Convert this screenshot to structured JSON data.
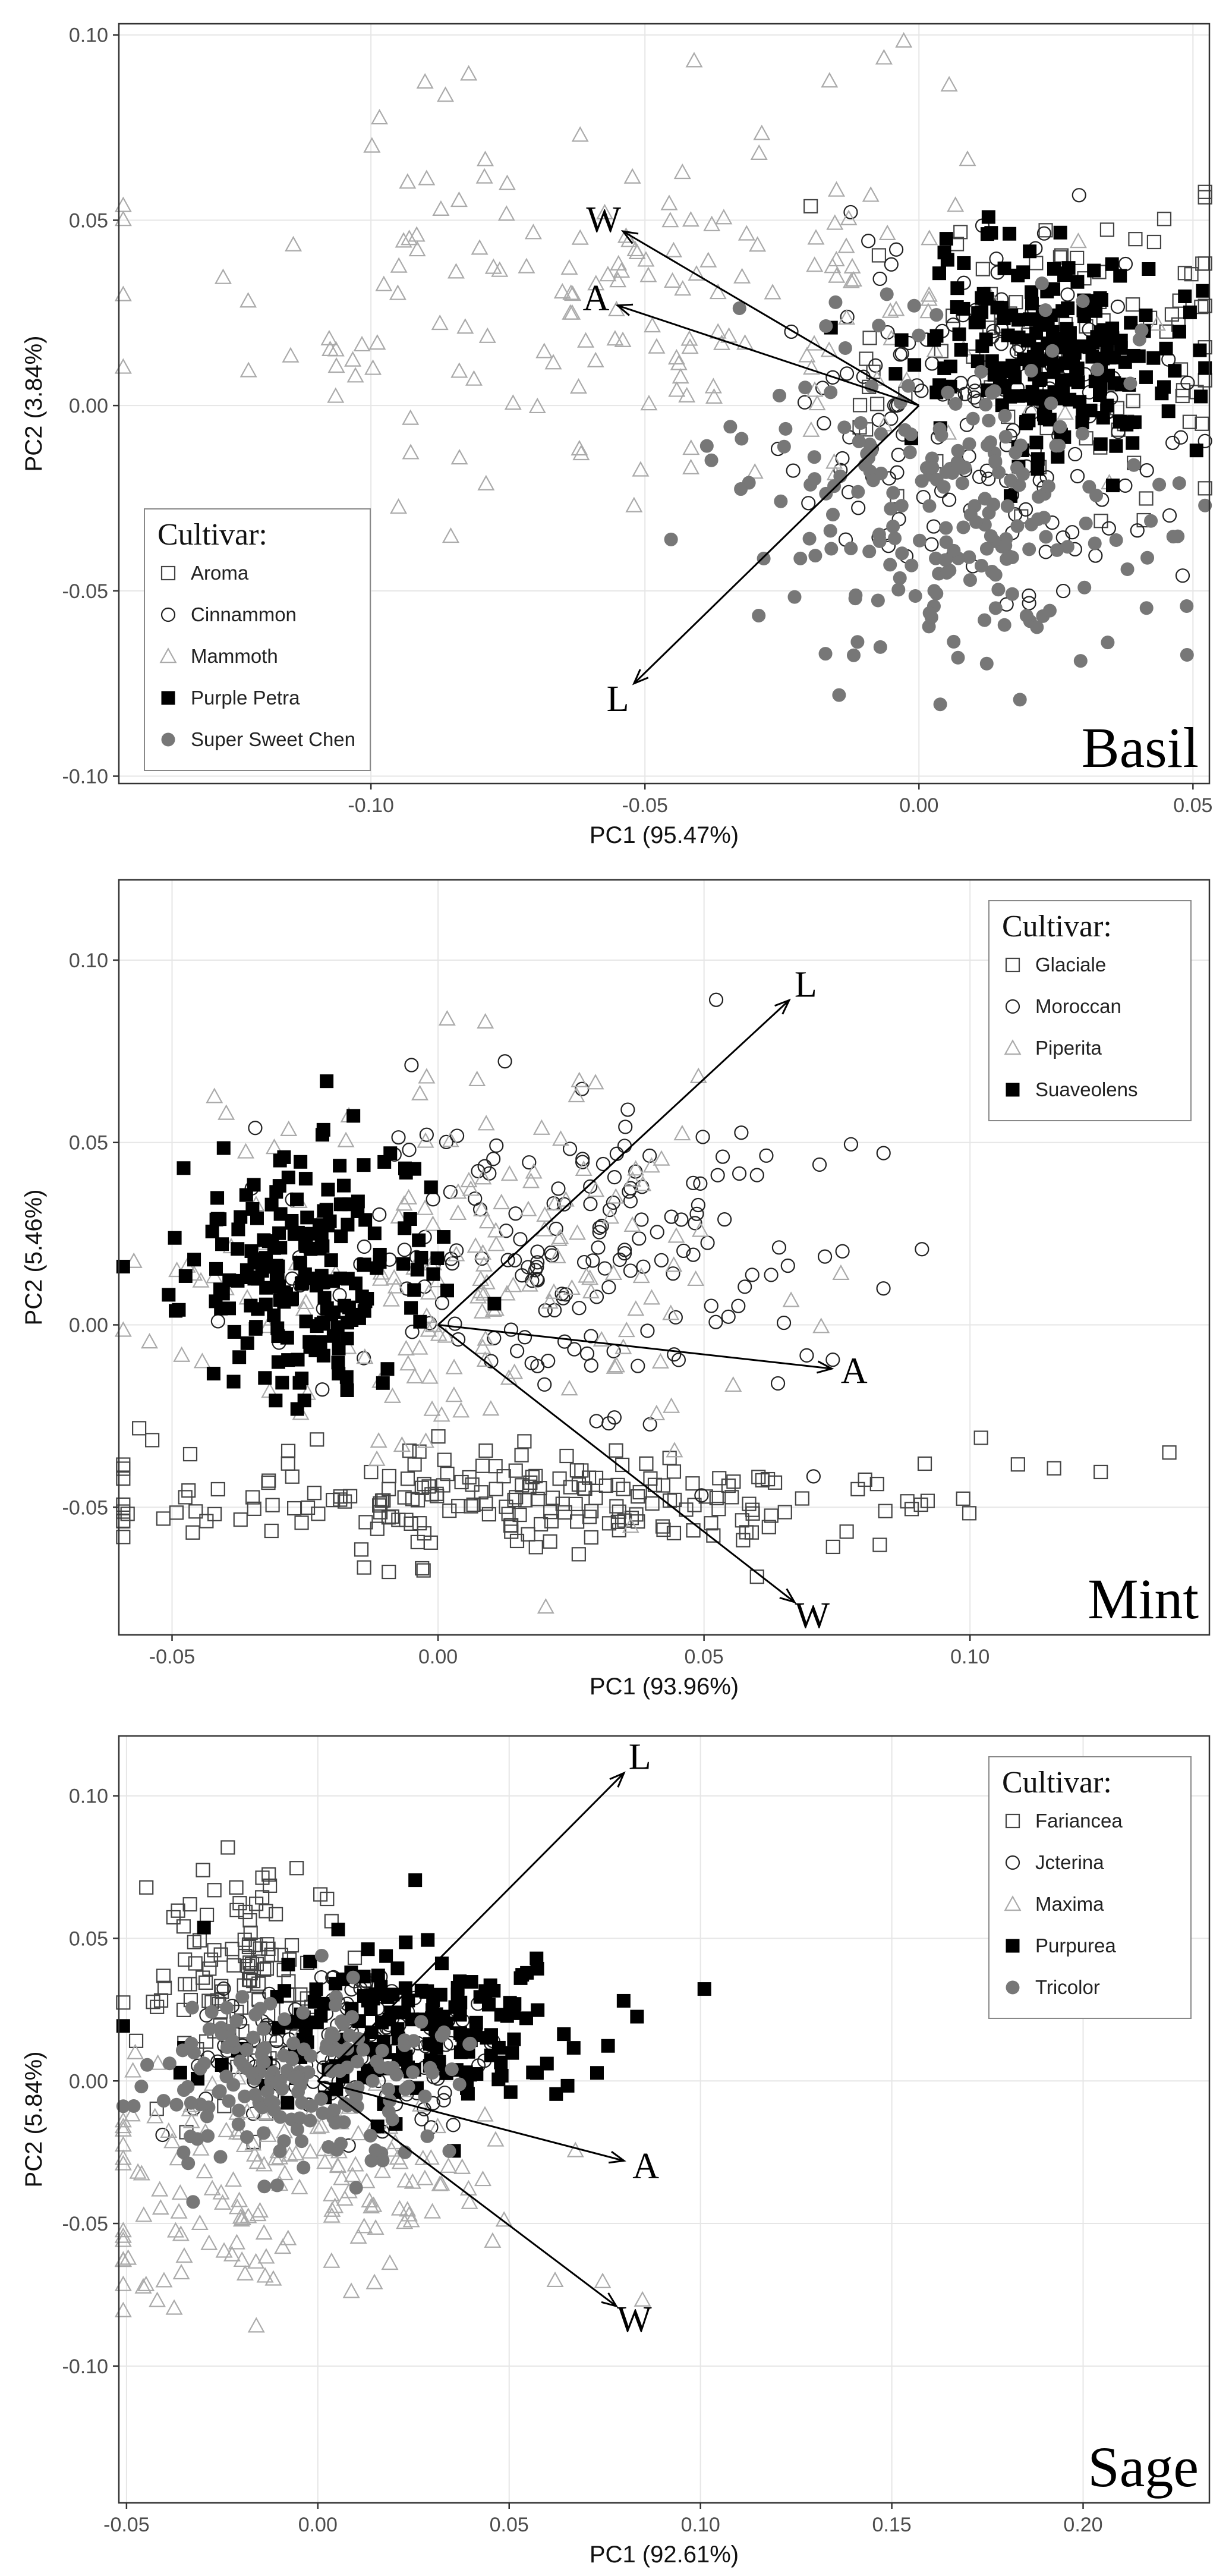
{
  "figure": {
    "description_label": "Three PCA biplots of herb cultivars"
  },
  "chart_data": [
    {
      "type": "scatter",
      "panel_label": "Basil",
      "title": "",
      "xlabel": "PC1 (95.47%)",
      "ylabel": "PC2 (3.84%)",
      "xlim": [
        -0.146,
        0.053
      ],
      "ylim": [
        -0.102,
        0.103
      ],
      "xticks": [
        -0.1,
        -0.05,
        0.0,
        0.05
      ],
      "xtick_labels": [
        "-0.10",
        "-0.05",
        "0.00",
        "0.05"
      ],
      "yticks": [
        -0.1,
        -0.05,
        0.0,
        0.05,
        0.1
      ],
      "ytick_labels": [
        "-0.10",
        "-0.05",
        "0.00",
        "0.05",
        "0.10"
      ],
      "legend": {
        "title": "Cultivar:",
        "position": "bottom-left"
      },
      "series": [
        {
          "name": "Aroma",
          "marker": "open-square",
          "color": "#444444",
          "count": 90,
          "center": [
            0.025,
            0.015
          ],
          "spread": [
            0.02,
            0.02
          ]
        },
        {
          "name": "Cinnammon",
          "marker": "open-circle",
          "color": "#222222",
          "count": 150,
          "center": [
            0.012,
            -0.005
          ],
          "spread": [
            0.018,
            0.022
          ]
        },
        {
          "name": "Mammoth",
          "marker": "open-triangle",
          "color": "#aaaaaa",
          "count": 180,
          "center": [
            -0.05,
            0.03
          ],
          "spread": [
            0.04,
            0.025
          ]
        },
        {
          "name": "Purple Petra",
          "marker": "filled-square",
          "color": "#000000",
          "count": 220,
          "center": [
            0.025,
            0.015
          ],
          "spread": [
            0.012,
            0.014
          ]
        },
        {
          "name": "Super Sweet Chen",
          "marker": "filled-circle",
          "color": "#777777",
          "count": 220,
          "center": [
            0.005,
            -0.025
          ],
          "spread": [
            0.02,
            0.022
          ]
        }
      ],
      "vectors": [
        {
          "label": "W",
          "origin": [
            0.0,
            0.0
          ],
          "end": [
            -0.054,
            0.047
          ]
        },
        {
          "label": "A",
          "origin": [
            0.0,
            0.0
          ],
          "end": [
            -0.055,
            0.027
          ]
        },
        {
          "label": "L",
          "origin": [
            0.0,
            0.0
          ],
          "end": [
            -0.052,
            -0.075
          ]
        }
      ]
    },
    {
      "type": "scatter",
      "panel_label": "Mint",
      "title": "",
      "xlabel": "PC1 (93.96%)",
      "ylabel": "PC2 (5.46%)",
      "xlim": [
        -0.06,
        0.145
      ],
      "ylim": [
        -0.085,
        0.122
      ],
      "xticks": [
        -0.05,
        0.0,
        0.05,
        0.1
      ],
      "xtick_labels": [
        "-0.05",
        "0.00",
        "0.05",
        "0.10"
      ],
      "yticks": [
        -0.05,
        0.0,
        0.05,
        0.1
      ],
      "ytick_labels": [
        "-0.05",
        "0.00",
        "0.05",
        "0.10"
      ],
      "legend": {
        "title": "Cultivar:",
        "position": "top-right"
      },
      "series": [
        {
          "name": "Glaciale",
          "marker": "open-square",
          "color": "#444444",
          "count": 220,
          "center": [
            0.02,
            -0.048
          ],
          "spread": [
            0.04,
            0.008
          ]
        },
        {
          "name": "Moroccan",
          "marker": "open-circle",
          "color": "#222222",
          "count": 180,
          "center": [
            0.025,
            0.02
          ],
          "spread": [
            0.025,
            0.022
          ]
        },
        {
          "name": "Piperita",
          "marker": "open-triangle",
          "color": "#aaaaaa",
          "count": 170,
          "center": [
            0.01,
            0.015
          ],
          "spread": [
            0.03,
            0.03
          ]
        },
        {
          "name": "Suaveolens",
          "marker": "filled-square",
          "color": "#000000",
          "count": 200,
          "center": [
            -0.025,
            0.015
          ],
          "spread": [
            0.012,
            0.018
          ]
        }
      ],
      "vectors": [
        {
          "label": "L",
          "origin": [
            0.0,
            0.0
          ],
          "end": [
            0.066,
            0.089
          ]
        },
        {
          "label": "A",
          "origin": [
            0.0,
            0.0
          ],
          "end": [
            0.074,
            -0.012
          ]
        },
        {
          "label": "W",
          "origin": [
            0.0,
            0.0
          ],
          "end": [
            0.067,
            -0.076
          ]
        }
      ]
    },
    {
      "type": "scatter",
      "panel_label": "Sage",
      "title": "",
      "xlabel": "PC1 (92.61%)",
      "ylabel": "PC2 (5.84%)",
      "xlim": [
        -0.052,
        0.233
      ],
      "ylim": [
        -0.148,
        0.121
      ],
      "xticks": [
        -0.05,
        0.0,
        0.05,
        0.1,
        0.15,
        0.2
      ],
      "xtick_labels": [
        "-0.05",
        "0.00",
        "0.05",
        "0.10",
        "0.15",
        "0.20"
      ],
      "yticks": [
        -0.1,
        -0.05,
        0.0,
        0.05,
        0.1
      ],
      "ytick_labels": [
        "-0.10",
        "-0.05",
        "0.00",
        "0.05",
        "0.10"
      ],
      "legend": {
        "title": "Cultivar:",
        "position": "top-right"
      },
      "series": [
        {
          "name": "Fariancea",
          "marker": "open-square",
          "color": "#444444",
          "count": 120,
          "center": [
            -0.02,
            0.035
          ],
          "spread": [
            0.012,
            0.02
          ]
        },
        {
          "name": "Jcterina",
          "marker": "open-circle",
          "color": "#222222",
          "count": 130,
          "center": [
            0.005,
            0.01
          ],
          "spread": [
            0.02,
            0.015
          ]
        },
        {
          "name": "Maxima",
          "marker": "open-triangle",
          "color": "#aaaaaa",
          "count": 170,
          "center": [
            -0.01,
            -0.035
          ],
          "spread": [
            0.03,
            0.02
          ]
        },
        {
          "name": "Purpurea",
          "marker": "filled-square",
          "color": "#000000",
          "count": 180,
          "center": [
            0.025,
            0.02
          ],
          "spread": [
            0.025,
            0.014
          ]
        },
        {
          "name": "Tricolor",
          "marker": "filled-circle",
          "color": "#777777",
          "count": 190,
          "center": [
            -0.005,
            0.0
          ],
          "spread": [
            0.02,
            0.016
          ]
        }
      ],
      "vectors": [
        {
          "label": "L",
          "origin": [
            0.0,
            0.0
          ],
          "end": [
            0.08,
            0.108
          ]
        },
        {
          "label": "A",
          "origin": [
            0.0,
            0.0
          ],
          "end": [
            0.08,
            -0.028
          ]
        },
        {
          "label": "W",
          "origin": [
            0.0,
            0.0
          ],
          "end": [
            0.078,
            -0.079
          ]
        }
      ]
    }
  ]
}
